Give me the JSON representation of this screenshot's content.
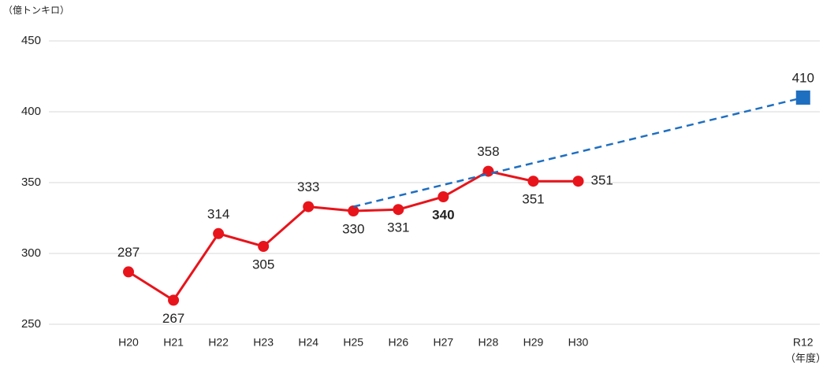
{
  "chart_data": {
    "type": "line",
    "y_axis_label": "（億トンキロ）",
    "x_axis_label": "（年度）",
    "categories": [
      "H20",
      "H21",
      "H22",
      "H23",
      "H24",
      "H25",
      "H26",
      "H27",
      "H28",
      "H29",
      "H30",
      null,
      null,
      null,
      null,
      "R12"
    ],
    "series": [
      {
        "color": "#e8141b",
        "marker": "circle",
        "dashed": false,
        "connect_gaps": false,
        "values": [
          287,
          267,
          314,
          305,
          333,
          330,
          331,
          340,
          358,
          351,
          351,
          null,
          null,
          null,
          null,
          null
        ]
      },
      {
        "color": "#1f6fc1",
        "marker": "square",
        "dashed": true,
        "connect_gaps": true,
        "values": [
          null,
          null,
          null,
          null,
          null,
          333,
          null,
          null,
          null,
          null,
          null,
          null,
          null,
          null,
          null,
          410
        ],
        "value_labels": [
          null,
          null,
          null,
          null,
          null,
          null,
          null,
          null,
          null,
          null,
          null,
          null,
          null,
          null,
          null,
          "410"
        ]
      }
    ],
    "ylim": [
      250,
      450
    ],
    "yticks": [
      250,
      300,
      350,
      400,
      450
    ],
    "grid": true
  }
}
